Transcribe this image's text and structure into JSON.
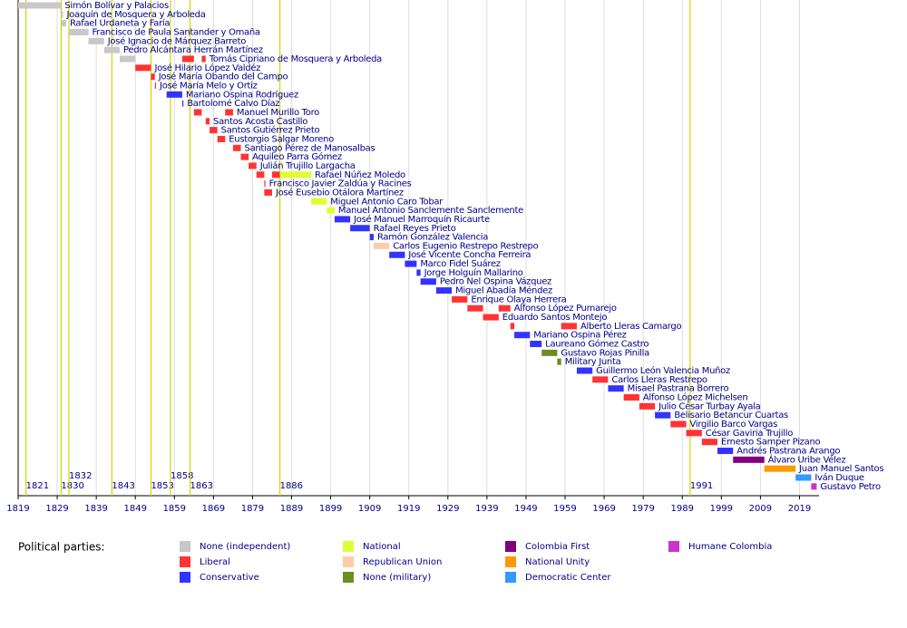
{
  "chart_data": {
    "type": "timeline",
    "xlim": [
      1819,
      2024
    ],
    "xticks": [
      1819,
      1829,
      1839,
      1849,
      1859,
      1869,
      1879,
      1889,
      1899,
      1909,
      1919,
      1929,
      1939,
      1949,
      1959,
      1969,
      1979,
      1989,
      1999,
      2009,
      2019
    ],
    "grid": true,
    "markers": [
      1821,
      1830,
      1832,
      1843,
      1853,
      1858,
      1863,
      1886,
      1991
    ],
    "marker_color": "#d4d400",
    "legend_title": "Political parties:",
    "parties": [
      {
        "name": "None (independent)",
        "color": "#c8c8c8"
      },
      {
        "name": "Liberal",
        "color": "#ff3333"
      },
      {
        "name": "Conservative",
        "color": "#3333ff"
      },
      {
        "name": "National",
        "color": "#ddff33"
      },
      {
        "name": "Republican Union",
        "color": "#ffccaa"
      },
      {
        "name": "None (military)",
        "color": "#6b8e23"
      },
      {
        "name": "Colombia First",
        "color": "#800080"
      },
      {
        "name": "National Unity",
        "color": "#ff9900"
      },
      {
        "name": "Democratic Center",
        "color": "#3399ff"
      },
      {
        "name": "Humane Colombia",
        "color": "#cc33cc"
      }
    ],
    "rows": [
      {
        "name": "Simón Bolívar y Palacios",
        "terms": [
          {
            "party": "None (independent)",
            "start": 1819,
            "end": 1830
          }
        ]
      },
      {
        "name": "Joaquín de Mosquera y Arboleda",
        "terms": [
          {
            "party": "None (independent)",
            "start": 1830,
            "end": 1830.5
          }
        ]
      },
      {
        "name": "Rafael Urdaneta y Faría",
        "terms": [
          {
            "party": "None (independent)",
            "start": 1830.1,
            "end": 1831.3
          }
        ]
      },
      {
        "name": "Francisco de Paula Santander y Omaña",
        "terms": [
          {
            "party": "None (independent)",
            "start": 1832,
            "end": 1837
          }
        ]
      },
      {
        "name": "José Ignacio de Márquez Barreto",
        "terms": [
          {
            "party": "None (independent)",
            "start": 1837,
            "end": 1841
          }
        ]
      },
      {
        "name": "Pedro Alcántara Herrán Martínez",
        "terms": [
          {
            "party": "None (independent)",
            "start": 1841,
            "end": 1845
          }
        ]
      },
      {
        "name": "Tomás Cipriano de Mosquera y Arboleda",
        "terms": [
          {
            "party": "None (independent)",
            "start": 1845,
            "end": 1849
          },
          {
            "party": "Liberal",
            "start": 1861,
            "end": 1864
          },
          {
            "party": "Liberal",
            "start": 1866,
            "end": 1867
          }
        ]
      },
      {
        "name": "José Hilario López Valdéz",
        "terms": [
          {
            "party": "Liberal",
            "start": 1849,
            "end": 1853
          }
        ]
      },
      {
        "name": "José María Obando del Campo",
        "terms": [
          {
            "party": "Liberal",
            "start": 1853,
            "end": 1854
          }
        ]
      },
      {
        "name": "José María Melo y Ortiz",
        "terms": [
          {
            "party": "Liberal",
            "start": 1854,
            "end": 1854.3
          }
        ]
      },
      {
        "name": "Mariano Ospina Rodríguez",
        "terms": [
          {
            "party": "Conservative",
            "start": 1857,
            "end": 1861
          }
        ]
      },
      {
        "name": "Bartolomé Calvo Díaz",
        "terms": [
          {
            "party": "Conservative",
            "start": 1861,
            "end": 1861.3
          }
        ]
      },
      {
        "name": "Manuel Murillo Toro",
        "terms": [
          {
            "party": "Liberal",
            "start": 1864,
            "end": 1866
          },
          {
            "party": "Liberal",
            "start": 1872,
            "end": 1874
          }
        ]
      },
      {
        "name": "Santos Acosta Castillo",
        "terms": [
          {
            "party": "Liberal",
            "start": 1867,
            "end": 1868
          }
        ]
      },
      {
        "name": "Santos Gutiérrez Prieto",
        "terms": [
          {
            "party": "Liberal",
            "start": 1868,
            "end": 1870
          }
        ]
      },
      {
        "name": "Eustorgio Salgar Moreno",
        "terms": [
          {
            "party": "Liberal",
            "start": 1870,
            "end": 1872
          }
        ]
      },
      {
        "name": "Santiago Pérez de Manosalbas",
        "terms": [
          {
            "party": "Liberal",
            "start": 1874,
            "end": 1876
          }
        ]
      },
      {
        "name": "Aquileo Parra Gómez",
        "terms": [
          {
            "party": "Liberal",
            "start": 1876,
            "end": 1878
          }
        ]
      },
      {
        "name": "Julián Trujillo Largacha",
        "terms": [
          {
            "party": "Liberal",
            "start": 1878,
            "end": 1880
          }
        ]
      },
      {
        "name": "Rafael Núñez Moledo",
        "terms": [
          {
            "party": "Liberal",
            "start": 1880,
            "end": 1882
          },
          {
            "party": "Liberal",
            "start": 1884,
            "end": 1886
          },
          {
            "party": "National",
            "start": 1886,
            "end": 1894
          }
        ]
      },
      {
        "name": "Francisco Javier Zaldúa y Racines",
        "terms": [
          {
            "party": "Liberal",
            "start": 1882,
            "end": 1882.3
          }
        ]
      },
      {
        "name": "José Eusebio Otálora Martínez",
        "terms": [
          {
            "party": "Liberal",
            "start": 1882,
            "end": 1884
          }
        ]
      },
      {
        "name": "Miguel Antonio Caro Tobar",
        "terms": [
          {
            "party": "National",
            "start": 1894,
            "end": 1898
          }
        ]
      },
      {
        "name": "Manuel Antonio Sanclemente Sanclemente",
        "terms": [
          {
            "party": "National",
            "start": 1898,
            "end": 1900
          }
        ]
      },
      {
        "name": "José Manuel Marroquín Ricaurte",
        "terms": [
          {
            "party": "Conservative",
            "start": 1900,
            "end": 1904
          }
        ]
      },
      {
        "name": "Rafael Reyes Prieto",
        "terms": [
          {
            "party": "Conservative",
            "start": 1904,
            "end": 1909
          }
        ]
      },
      {
        "name": "Ramón González Valencia",
        "terms": [
          {
            "party": "Conservative",
            "start": 1909,
            "end": 1910
          }
        ]
      },
      {
        "name": "Carlos Eugenio Restrepo Restrepo",
        "terms": [
          {
            "party": "Republican Union",
            "start": 1910,
            "end": 1914
          }
        ]
      },
      {
        "name": "José Vicente Concha Ferreira",
        "terms": [
          {
            "party": "Conservative",
            "start": 1914,
            "end": 1918
          }
        ]
      },
      {
        "name": "Marco Fidel Suárez",
        "terms": [
          {
            "party": "Conservative",
            "start": 1918,
            "end": 1921
          }
        ]
      },
      {
        "name": "Jorge Holguín Mallarino",
        "terms": [
          {
            "party": "Conservative",
            "start": 1921,
            "end": 1922
          }
        ]
      },
      {
        "name": "Pedro Nel Ospina Vázquez",
        "terms": [
          {
            "party": "Conservative",
            "start": 1922,
            "end": 1926
          }
        ]
      },
      {
        "name": "Miguel Abadía Méndez",
        "terms": [
          {
            "party": "Conservative",
            "start": 1926,
            "end": 1930
          }
        ]
      },
      {
        "name": "Enrique Olaya Herrera",
        "terms": [
          {
            "party": "Liberal",
            "start": 1930,
            "end": 1934
          }
        ]
      },
      {
        "name": "Alfonso López Pumarejo",
        "terms": [
          {
            "party": "Liberal",
            "start": 1934,
            "end": 1938
          },
          {
            "party": "Liberal",
            "start": 1942,
            "end": 1945
          }
        ]
      },
      {
        "name": "Eduardo Santos Montejo",
        "terms": [
          {
            "party": "Liberal",
            "start": 1938,
            "end": 1942
          }
        ]
      },
      {
        "name": "Alberto Lleras Camargo",
        "terms": [
          {
            "party": "Liberal",
            "start": 1945,
            "end": 1946
          },
          {
            "party": "Liberal",
            "start": 1958,
            "end": 1962
          }
        ]
      },
      {
        "name": "Mariano Ospina Pérez",
        "terms": [
          {
            "party": "Conservative",
            "start": 1946,
            "end": 1950
          }
        ]
      },
      {
        "name": "Laureano Gómez Castro",
        "terms": [
          {
            "party": "Conservative",
            "start": 1950,
            "end": 1953
          }
        ]
      },
      {
        "name": "Gustavo Rojas Pinilla",
        "terms": [
          {
            "party": "None (military)",
            "start": 1953,
            "end": 1957
          }
        ]
      },
      {
        "name": "Military Junta",
        "terms": [
          {
            "party": "None (military)",
            "start": 1957,
            "end": 1958
          }
        ]
      },
      {
        "name": "Guillermo León Valencia Muñoz",
        "terms": [
          {
            "party": "Conservative",
            "start": 1962,
            "end": 1966
          }
        ]
      },
      {
        "name": "Carlos Lleras Restrepo",
        "terms": [
          {
            "party": "Liberal",
            "start": 1966,
            "end": 1970
          }
        ]
      },
      {
        "name": "Misael Pastrana Borrero",
        "terms": [
          {
            "party": "Conservative",
            "start": 1970,
            "end": 1974
          }
        ]
      },
      {
        "name": "Alfonso López Michelsen",
        "terms": [
          {
            "party": "Liberal",
            "start": 1974,
            "end": 1978
          }
        ]
      },
      {
        "name": "Julio César Turbay Ayala",
        "terms": [
          {
            "party": "Liberal",
            "start": 1978,
            "end": 1982
          }
        ]
      },
      {
        "name": "Belisario Betancur Cuartas",
        "terms": [
          {
            "party": "Conservative",
            "start": 1982,
            "end": 1986
          }
        ]
      },
      {
        "name": "Virgilio Barco Vargas",
        "terms": [
          {
            "party": "Liberal",
            "start": 1986,
            "end": 1990
          }
        ]
      },
      {
        "name": "César Gaviria Trujillo",
        "terms": [
          {
            "party": "Liberal",
            "start": 1990,
            "end": 1994
          }
        ]
      },
      {
        "name": "Ernesto Samper Pizano",
        "terms": [
          {
            "party": "Liberal",
            "start": 1994,
            "end": 1998
          }
        ]
      },
      {
        "name": "Andrés Pastrana Arango",
        "terms": [
          {
            "party": "Conservative",
            "start": 1998,
            "end": 2002
          }
        ]
      },
      {
        "name": "Álvaro Uribe Vélez",
        "terms": [
          {
            "party": "Colombia First",
            "start": 2002,
            "end": 2010
          }
        ]
      },
      {
        "name": "Juan Manuel Santos",
        "terms": [
          {
            "party": "National Unity",
            "start": 2010,
            "end": 2018
          }
        ]
      },
      {
        "name": "Iván Duque",
        "terms": [
          {
            "party": "Democratic Center",
            "start": 2018,
            "end": 2022
          }
        ]
      },
      {
        "name": "Gustavo Petro",
        "terms": [
          {
            "party": "Humane Colombia",
            "start": 2022,
            "end": 2023.4
          }
        ]
      }
    ]
  }
}
